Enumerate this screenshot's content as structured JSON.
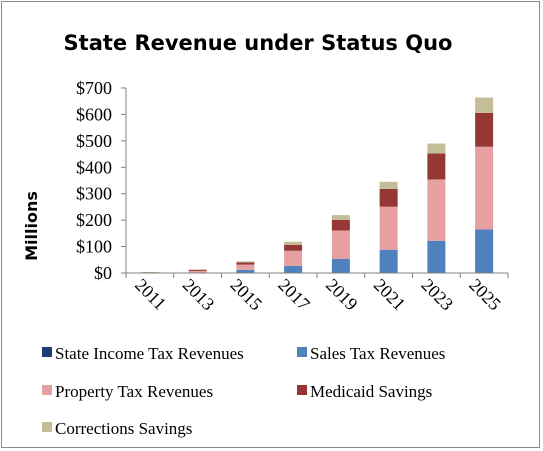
{
  "chart_data": {
    "type": "bar",
    "stacked": true,
    "title": "State Revenue under Status Quo",
    "ylabel": "Millions",
    "xlabel": "",
    "categories": [
      "2011",
      "2013",
      "2015",
      "2017",
      "2019",
      "2021",
      "2023",
      "2025"
    ],
    "y_ticks": [
      0,
      100,
      200,
      300,
      400,
      500,
      600,
      700
    ],
    "y_tick_labels": [
      "$0",
      "$100",
      "$200",
      "$300",
      "$400",
      "$500",
      "$600",
      "$700"
    ],
    "ylim": [
      0,
      700
    ],
    "grid": false,
    "legend_position": "bottom",
    "series": [
      {
        "name": "State Income Tax Revenues",
        "color": "#1f3c73",
        "values": [
          0,
          0,
          0,
          0,
          0,
          0,
          0,
          0
        ]
      },
      {
        "name": "Sales Tax Revenues",
        "color": "#4f81bd",
        "values": [
          1,
          2,
          12,
          27,
          53,
          88,
          122,
          165
        ]
      },
      {
        "name": "Property Tax Revenues",
        "color": "#e6a0a2",
        "values": [
          1,
          6,
          20,
          57,
          108,
          163,
          232,
          313
        ]
      },
      {
        "name": "Medicaid Savings",
        "color": "#953735",
        "values": [
          1,
          4,
          8,
          22,
          40,
          67,
          98,
          128
        ]
      },
      {
        "name": "Corrections Savings",
        "color": "#c4bd97",
        "values": [
          1,
          2,
          4,
          12,
          18,
          27,
          38,
          58
        ]
      }
    ]
  }
}
